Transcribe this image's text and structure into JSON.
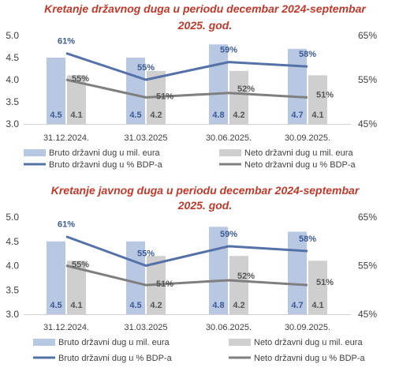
{
  "chart_data": [
    {
      "type": "bar+line",
      "title": "Kretanje državnog duga u periodu decembar 2024-septembar 2025. god.",
      "title_lines": [
        "Kretanje državnog duga u periodu decembar 2024-septembar",
        "2025. god."
      ],
      "categories": [
        "31.12.2024.",
        "31.03.2025",
        "30.06.2025.",
        "30.09.2025."
      ],
      "y_left": {
        "ticks": [
          "3.0",
          "3.5",
          "4.0",
          "4.5",
          "5.0"
        ],
        "range": [
          3.0,
          5.0
        ]
      },
      "y_right": {
        "ticks": [
          "45%",
          "55%",
          "65%"
        ],
        "range": [
          45,
          65
        ]
      },
      "series": [
        {
          "name": "Bruto državni dug u mil. eura",
          "kind": "bar",
          "axis": "left",
          "values": [
            4.5,
            4.5,
            4.8,
            4.7
          ],
          "labels": [
            "4.5",
            "4.5",
            "4.8",
            "4.7"
          ]
        },
        {
          "name": "Neto državni dug u mil. eura",
          "kind": "bar",
          "axis": "left",
          "values": [
            4.1,
            4.2,
            4.2,
            4.1
          ],
          "labels": [
            "4.1",
            "4.2",
            "4.2",
            "4.1"
          ]
        },
        {
          "name": "Bruto državni dug u % BDP-a",
          "kind": "line",
          "axis": "right",
          "values": [
            61,
            55,
            59,
            58
          ],
          "labels": [
            "61%",
            "55%",
            "59%",
            "58%"
          ]
        },
        {
          "name": "Neto državni dug u % BDP-a",
          "kind": "line",
          "axis": "right",
          "values": [
            55,
            51,
            52,
            51
          ],
          "labels": [
            "55%",
            "51%",
            "52%",
            "51%"
          ]
        }
      ],
      "legend_placement": "bottom",
      "grid": false
    },
    {
      "type": "bar+line",
      "title": "Kretanje javnog duga u periodu decembar 2024-septembar 2025. god.",
      "title_lines": [
        "Kretanje javnog duga u periodu decembar 2024-septembar",
        "2025. god."
      ],
      "categories": [
        "31.12.2024.",
        "31.03.2025",
        "30.06.2025.",
        "30.09.2025."
      ],
      "y_left": {
        "ticks": [
          "3.0",
          "3.5",
          "4.0",
          "4.5",
          "5.0"
        ],
        "range": [
          3.0,
          5.0
        ]
      },
      "y_right": {
        "ticks": [
          "45%",
          "55%",
          "65%"
        ],
        "range": [
          45,
          65
        ]
      },
      "series": [
        {
          "name": "Bruto državni dug u mil. eura",
          "kind": "bar",
          "axis": "left",
          "values": [
            4.5,
            4.5,
            4.8,
            4.7
          ],
          "labels": [
            "4.5",
            "4.5",
            "4.8",
            "4.7"
          ]
        },
        {
          "name": "Neto državni dug u mil. eura",
          "kind": "bar",
          "axis": "left",
          "values": [
            4.1,
            4.2,
            4.2,
            4.1
          ],
          "labels": [
            "4.1",
            "4.2",
            "4.2",
            "4.1"
          ]
        },
        {
          "name": "Bruto državni dug u % BDP-a",
          "kind": "line",
          "axis": "right",
          "values": [
            61,
            55,
            59,
            58
          ],
          "labels": [
            "61%",
            "55%",
            "59%",
            "58%"
          ]
        },
        {
          "name": "Neto državni dug u % BDP-a",
          "kind": "line",
          "axis": "right",
          "values": [
            55,
            51,
            52,
            51
          ],
          "labels": [
            "55%",
            "51%",
            "52%",
            "51%"
          ]
        }
      ],
      "legend_placement": "bottom",
      "grid": false
    }
  ],
  "colors": {
    "title": "#c0392b",
    "bruto_bar": "#b8c8e2",
    "neto_bar": "#cfcfcf",
    "bruto_line": "#5572a8",
    "neto_line": "#7f7f7f",
    "axis_text": "#404040",
    "bruto_pct_label": "#3c5a94",
    "neto_pct_label": "#555555"
  }
}
